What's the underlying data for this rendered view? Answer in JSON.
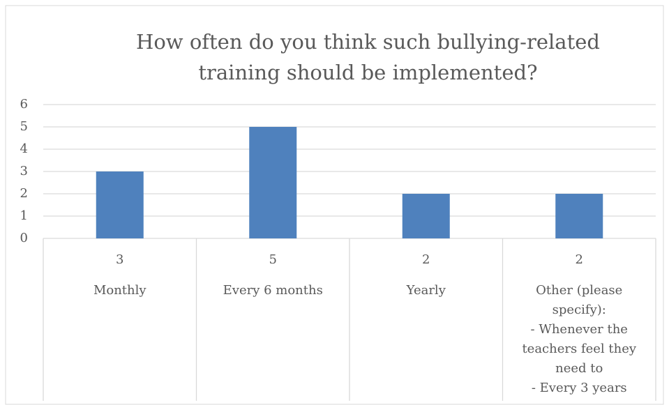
{
  "chart_data": {
    "type": "bar",
    "title": "How often do you think such bullying-related\ntraining should be implemented?",
    "categories": [
      "Monthly",
      "Every 6 months",
      "Yearly",
      "Other (please specify):\n- Whenever the teachers feel they need to\n- Every 3 years"
    ],
    "values": [
      3,
      5,
      2,
      2
    ],
    "color": "#4f81bd",
    "ylim": [
      0,
      6
    ],
    "yticks": [
      0,
      1,
      2,
      3,
      4,
      5,
      6
    ],
    "grid": true
  }
}
